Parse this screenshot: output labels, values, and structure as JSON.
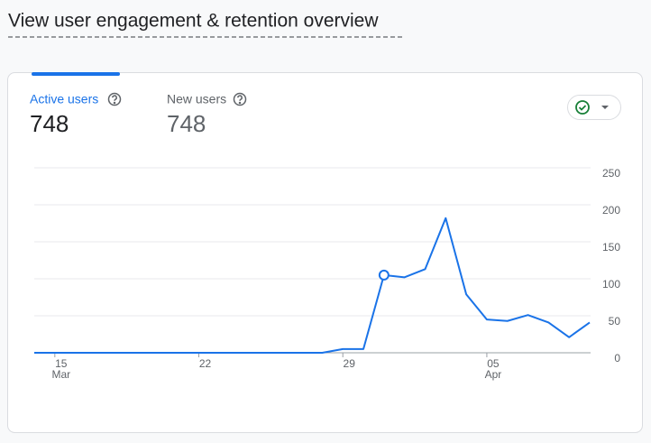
{
  "header": {
    "title": "View user engagement & retention overview"
  },
  "tabs": [
    {
      "label": "Active users",
      "value": 748
    },
    {
      "label": "New users",
      "value": 748
    }
  ],
  "chart_data": {
    "type": "line",
    "categories": [
      null,
      "15",
      null,
      null,
      null,
      null,
      null,
      null,
      "22",
      null,
      null,
      null,
      null,
      null,
      null,
      "29",
      null,
      null,
      null,
      null,
      null,
      null,
      "05",
      null,
      null,
      null,
      null,
      null
    ],
    "category_months": [
      null,
      "Mar",
      null,
      null,
      null,
      null,
      null,
      null,
      null,
      null,
      null,
      null,
      null,
      null,
      null,
      null,
      null,
      null,
      null,
      null,
      null,
      null,
      "Apr",
      null,
      null,
      null,
      null,
      null
    ],
    "series": [
      {
        "name": "Active users",
        "color": "#1a73e8",
        "values": [
          0,
          0,
          0,
          0,
          0,
          0,
          0,
          0,
          0,
          0,
          0,
          0,
          0,
          0,
          0,
          5,
          5,
          105,
          102,
          113,
          182,
          79,
          45,
          43,
          51,
          41,
          21,
          41
        ]
      }
    ],
    "highlight_index": 17,
    "ylim": [
      0,
      250
    ],
    "yticks": [
      0,
      50,
      100,
      150,
      200,
      250
    ],
    "grid": true
  }
}
